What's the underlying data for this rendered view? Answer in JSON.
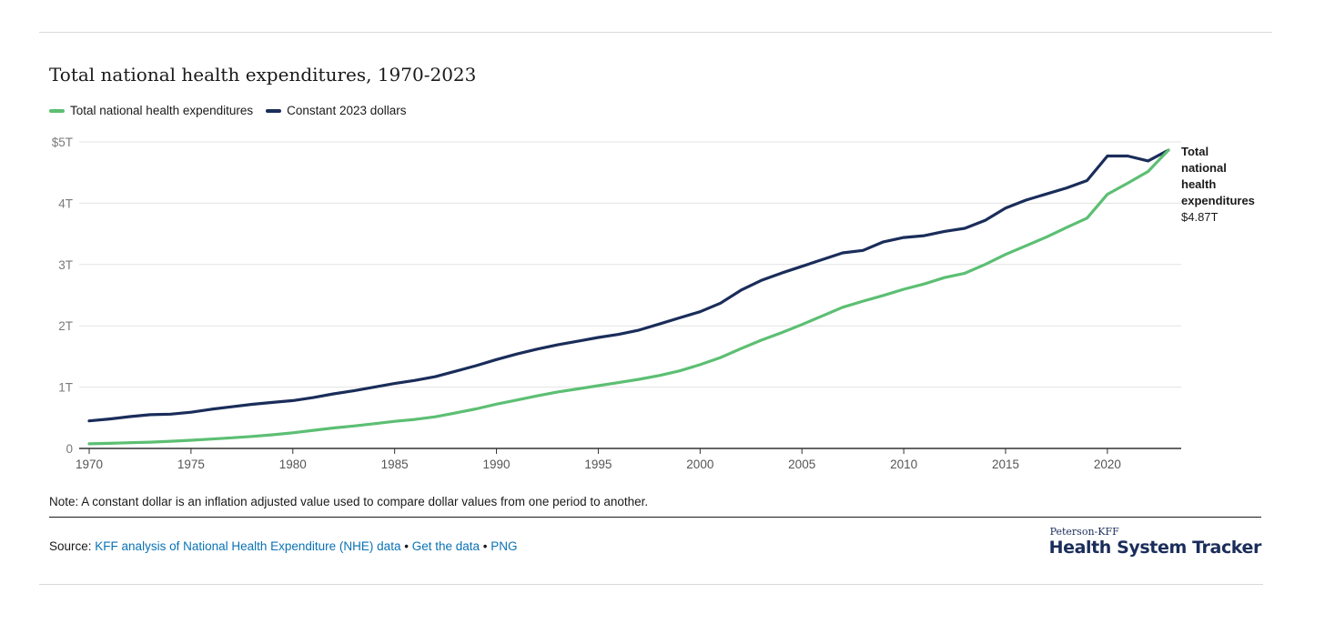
{
  "chart_data": {
    "type": "line",
    "title": "Total national health expenditures, 1970-2023",
    "x": [
      1970,
      1971,
      1972,
      1973,
      1974,
      1975,
      1976,
      1977,
      1978,
      1979,
      1980,
      1981,
      1982,
      1983,
      1984,
      1985,
      1986,
      1987,
      1988,
      1989,
      1990,
      1991,
      1992,
      1993,
      1994,
      1995,
      1996,
      1997,
      1998,
      1999,
      2000,
      2001,
      2002,
      2003,
      2004,
      2005,
      2006,
      2007,
      2008,
      2009,
      2010,
      2011,
      2012,
      2013,
      2014,
      2015,
      2016,
      2017,
      2018,
      2019,
      2020,
      2021,
      2022,
      2023
    ],
    "series": [
      {
        "name": "Total national health expenditures",
        "color": "#5cbf73",
        "values": [
          0.075,
          0.083,
          0.094,
          0.103,
          0.117,
          0.133,
          0.153,
          0.174,
          0.196,
          0.222,
          0.255,
          0.295,
          0.334,
          0.367,
          0.404,
          0.442,
          0.474,
          0.517,
          0.58,
          0.646,
          0.722,
          0.789,
          0.858,
          0.921,
          0.972,
          1.023,
          1.074,
          1.128,
          1.19,
          1.265,
          1.366,
          1.482,
          1.628,
          1.765,
          1.889,
          2.021,
          2.161,
          2.303,
          2.402,
          2.496,
          2.597,
          2.682,
          2.787,
          2.858,
          3.001,
          3.164,
          3.306,
          3.446,
          3.604,
          3.757,
          4.146,
          4.326,
          4.518,
          4.867
        ]
      },
      {
        "name": "Constant 2023 dollars",
        "color": "#1a2d5a",
        "values": [
          0.45,
          0.48,
          0.52,
          0.55,
          0.56,
          0.59,
          0.64,
          0.68,
          0.72,
          0.75,
          0.78,
          0.83,
          0.89,
          0.94,
          1.0,
          1.06,
          1.11,
          1.17,
          1.26,
          1.35,
          1.45,
          1.54,
          1.62,
          1.69,
          1.75,
          1.81,
          1.86,
          1.93,
          2.03,
          2.13,
          2.23,
          2.37,
          2.58,
          2.74,
          2.86,
          2.97,
          3.08,
          3.19,
          3.23,
          3.37,
          3.44,
          3.47,
          3.54,
          3.59,
          3.72,
          3.92,
          4.05,
          4.15,
          4.25,
          4.37,
          4.77,
          4.77,
          4.69,
          4.867
        ]
      }
    ],
    "ylim": [
      0,
      5
    ],
    "yticks": [
      0,
      1,
      2,
      3,
      4,
      5
    ],
    "ytick_labels": [
      "0",
      "1T",
      "2T",
      "3T",
      "4T",
      "$5T"
    ],
    "xticks": [
      1970,
      1975,
      1980,
      1985,
      1990,
      1995,
      2000,
      2005,
      2010,
      2015,
      2020
    ],
    "grid": true,
    "legend_position": "top-left",
    "end_label": {
      "lines": [
        "Total",
        "national",
        "health",
        "expenditures"
      ],
      "value": "$4.87T"
    }
  },
  "note": "Note: A constant dollar is an inflation adjusted value used to compare dollar values from one period to another.",
  "source": {
    "prefix": "Source:",
    "link1": "KFF analysis of National Health Expenditure (NHE) data",
    "sep1": "•",
    "link2": "Get the data",
    "sep2": "•",
    "link3": "PNG"
  },
  "brand": {
    "small": "Peterson-KFF",
    "big": "Health System Tracker",
    "color": "#1a2d5a"
  }
}
